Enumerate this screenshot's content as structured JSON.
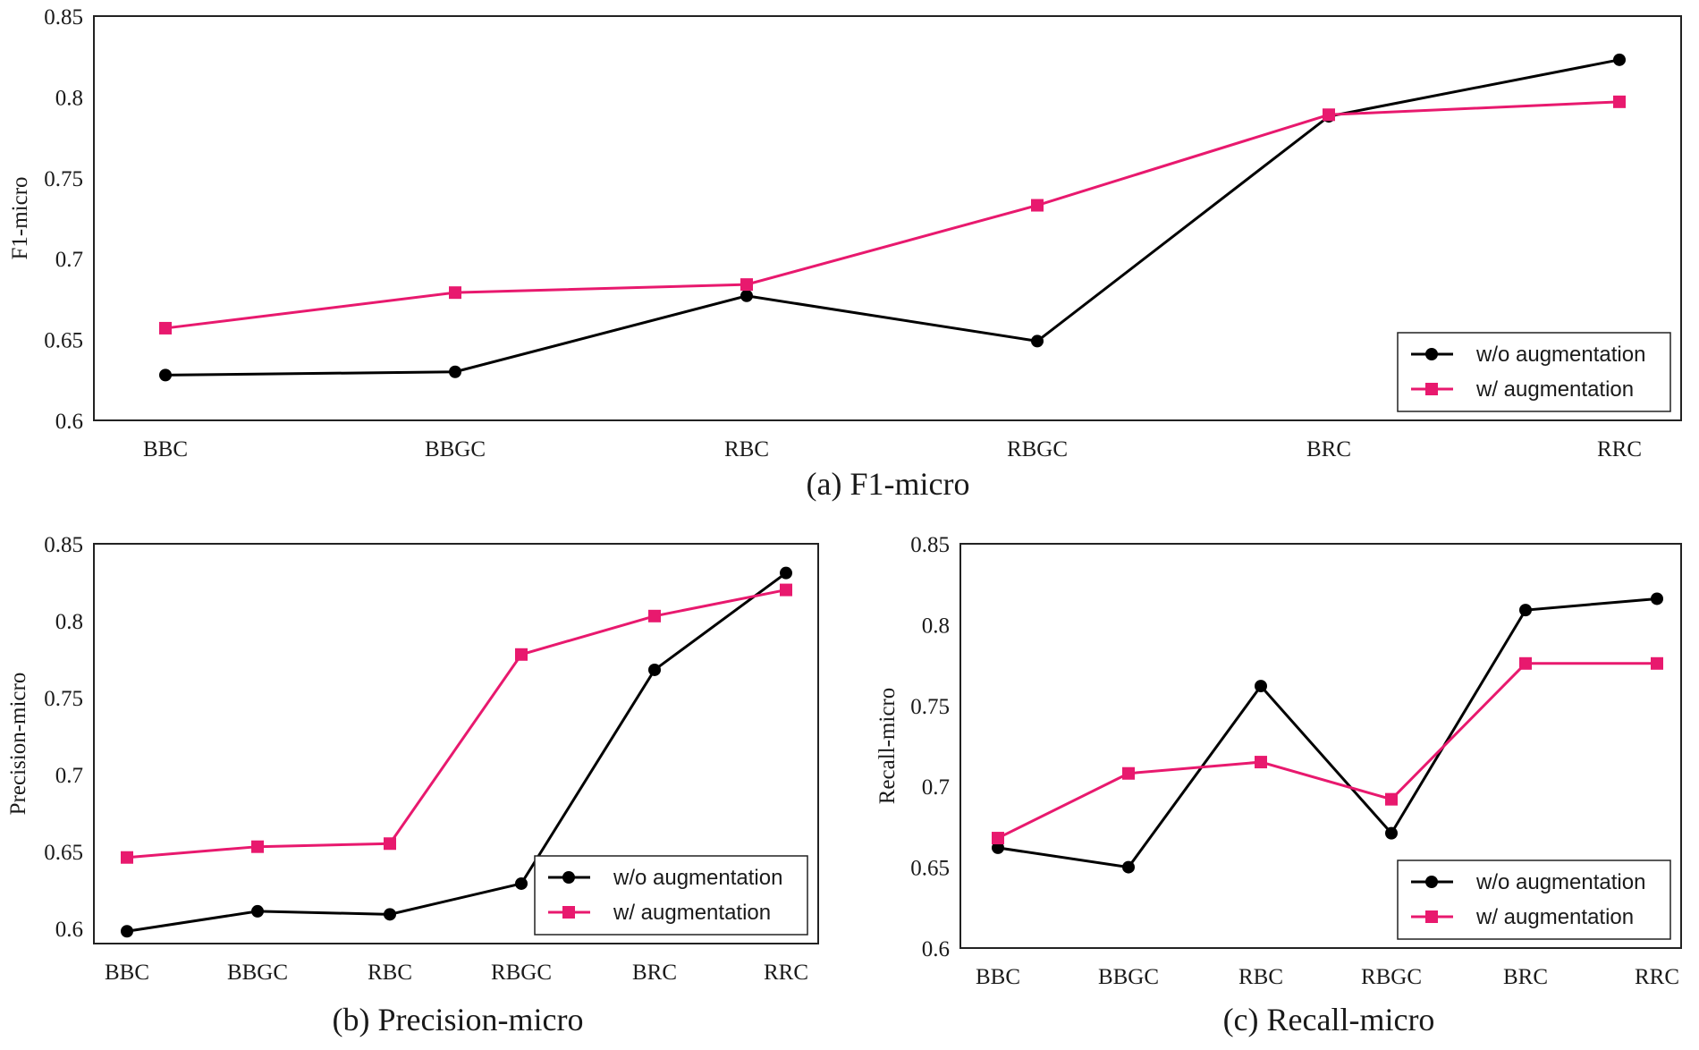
{
  "chart_data": [
    {
      "id": "a",
      "type": "line",
      "caption": "(a) F1-micro",
      "ylabel": "F1-micro",
      "xlabel": "",
      "categories": [
        "BBC",
        "BBGC",
        "RBC",
        "RBGC",
        "BRC",
        "RRC"
      ],
      "ylim": [
        0.6,
        0.85
      ],
      "yticks": [
        0.6,
        0.65,
        0.7,
        0.75,
        0.8,
        0.85
      ],
      "ytick_labels": [
        "0.6",
        "0.65",
        "0.7",
        "0.75",
        "0.8",
        "0.85"
      ],
      "legend_position": "bottom-right",
      "series": [
        {
          "name": "w/o augmentation",
          "marker": "circle",
          "color": "#000000",
          "values": [
            0.628,
            0.63,
            0.677,
            0.649,
            0.788,
            0.823
          ]
        },
        {
          "name": "w/ augmentation",
          "marker": "square",
          "color": "#e8196e",
          "values": [
            0.657,
            0.679,
            0.684,
            0.733,
            0.789,
            0.797
          ]
        }
      ]
    },
    {
      "id": "b",
      "type": "line",
      "caption": "(b) Precision-micro",
      "ylabel": "Precision-micro",
      "xlabel": "",
      "categories": [
        "BBC",
        "BBGC",
        "RBC",
        "RBGC",
        "BRC",
        "RRC"
      ],
      "ylim": [
        0.59,
        0.85
      ],
      "yticks": [
        0.6,
        0.65,
        0.7,
        0.75,
        0.8,
        0.85
      ],
      "ytick_labels": [
        "0.6",
        "0.65",
        "0.7",
        "0.75",
        "0.8",
        "0.85"
      ],
      "legend_position": "bottom-right",
      "series": [
        {
          "name": "w/o augmentation",
          "marker": "circle",
          "color": "#000000",
          "values": [
            0.598,
            0.611,
            0.609,
            0.629,
            0.768,
            0.831
          ]
        },
        {
          "name": "w/ augmentation",
          "marker": "square",
          "color": "#e8196e",
          "values": [
            0.646,
            0.653,
            0.655,
            0.778,
            0.803,
            0.82
          ]
        }
      ]
    },
    {
      "id": "c",
      "type": "line",
      "caption": "(c) Recall-micro",
      "ylabel": "Recall-micro",
      "xlabel": "",
      "categories": [
        "BBC",
        "BBGC",
        "RBC",
        "RBGC",
        "BRC",
        "RRC"
      ],
      "ylim": [
        0.6,
        0.85
      ],
      "yticks": [
        0.6,
        0.65,
        0.7,
        0.75,
        0.8,
        0.85
      ],
      "ytick_labels": [
        "0.6",
        "0.65",
        "0.7",
        "0.75",
        "0.8",
        "0.85"
      ],
      "legend_position": "bottom-right",
      "series": [
        {
          "name": "w/o augmentation",
          "marker": "circle",
          "color": "#000000",
          "values": [
            0.662,
            0.65,
            0.762,
            0.671,
            0.809,
            0.816
          ]
        },
        {
          "name": "w/ augmentation",
          "marker": "square",
          "color": "#e8196e",
          "values": [
            0.668,
            0.708,
            0.715,
            0.692,
            0.776,
            0.776
          ]
        }
      ]
    }
  ]
}
